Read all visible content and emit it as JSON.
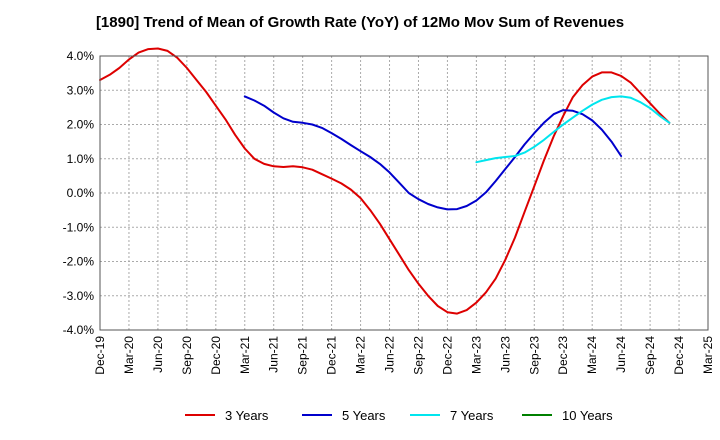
{
  "chart_data": {
    "type": "line",
    "title": "[1890]  Trend of Mean of Growth Rate (YoY) of 12Mo Mov Sum of Revenues",
    "xlabel": "",
    "ylabel": "",
    "ylim": [
      -4.0,
      4.0
    ],
    "y_ticks": [
      4.0,
      3.0,
      2.0,
      1.0,
      0.0,
      -1.0,
      -2.0,
      -3.0,
      -4.0
    ],
    "y_tick_labels": [
      "4.0%",
      "3.0%",
      "2.0%",
      "1.0%",
      "0.0%",
      "-1.0%",
      "-2.0%",
      "-3.0%",
      "-4.0%"
    ],
    "x_tick_labels": [
      "Dec-19",
      "Mar-20",
      "Jun-20",
      "Sep-20",
      "Dec-20",
      "Mar-21",
      "Jun-21",
      "Sep-21",
      "Dec-21",
      "Mar-22",
      "Jun-22",
      "Sep-22",
      "Dec-22",
      "Mar-23",
      "Jun-23",
      "Sep-23",
      "Dec-23",
      "Mar-24",
      "Jun-24",
      "Sep-24",
      "Dec-24",
      "Mar-25"
    ],
    "x_start": "2019-12",
    "x_months": 63,
    "grid": true,
    "legend_position": "bottom",
    "series": [
      {
        "name": "3 Years",
        "color": "#dd0000",
        "start_month": 0,
        "values": [
          3.3,
          3.45,
          3.65,
          3.9,
          4.1,
          4.2,
          4.22,
          4.15,
          3.95,
          3.65,
          3.3,
          2.95,
          2.55,
          2.15,
          1.7,
          1.3,
          1.0,
          0.85,
          0.78,
          0.76,
          0.78,
          0.75,
          0.68,
          0.55,
          0.42,
          0.28,
          0.1,
          -0.15,
          -0.5,
          -0.9,
          -1.35,
          -1.8,
          -2.25,
          -2.65,
          -3.0,
          -3.3,
          -3.48,
          -3.52,
          -3.42,
          -3.2,
          -2.9,
          -2.5,
          -1.95,
          -1.3,
          -0.55,
          0.2,
          0.95,
          1.65,
          2.25,
          2.8,
          3.15,
          3.4,
          3.52,
          3.52,
          3.42,
          3.22,
          2.92,
          2.62,
          2.32,
          2.05
        ]
      },
      {
        "name": "5 Years",
        "color": "#0000cc",
        "start_month": 15,
        "values": [
          2.82,
          2.7,
          2.55,
          2.35,
          2.18,
          2.08,
          2.05,
          2.0,
          1.9,
          1.75,
          1.58,
          1.4,
          1.22,
          1.05,
          0.85,
          0.6,
          0.3,
          0.0,
          -0.18,
          -0.32,
          -0.42,
          -0.48,
          -0.47,
          -0.38,
          -0.22,
          0.02,
          0.35,
          0.7,
          1.05,
          1.42,
          1.75,
          2.05,
          2.3,
          2.42,
          2.4,
          2.3,
          2.12,
          1.85,
          1.5,
          1.08
        ]
      },
      {
        "name": "7 Years",
        "color": "#00e5ee",
        "start_month": 39,
        "values": [
          0.9,
          0.96,
          1.02,
          1.05,
          1.08,
          1.18,
          1.35,
          1.55,
          1.78,
          2.0,
          2.2,
          2.4,
          2.58,
          2.72,
          2.8,
          2.82,
          2.78,
          2.65,
          2.48,
          2.25,
          2.05
        ]
      },
      {
        "name": "10 Years",
        "color": "#008000",
        "start_month": 0,
        "values": []
      }
    ]
  }
}
